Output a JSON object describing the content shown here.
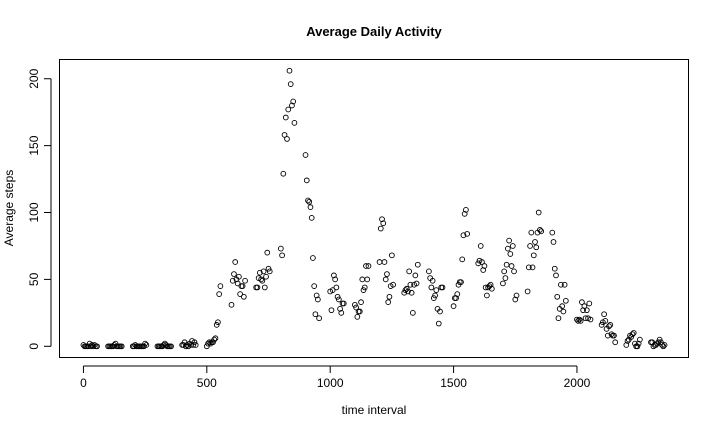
{
  "chart_data": {
    "type": "scatter",
    "title": "Average Daily Activity",
    "xlabel": "time interval",
    "ylabel": "Average steps",
    "xlim": [
      -95,
      2450
    ],
    "ylim": [
      -8,
      214
    ],
    "xticks": [
      0,
      500,
      1000,
      1500,
      2000
    ],
    "yticks": [
      0,
      50,
      100,
      150,
      200
    ],
    "marker": "open-circle",
    "grid": false,
    "points": [
      [
        0,
        1
      ],
      [
        5,
        0
      ],
      [
        10,
        0
      ],
      [
        15,
        0
      ],
      [
        20,
        0
      ],
      [
        25,
        2
      ],
      [
        30,
        0
      ],
      [
        35,
        1
      ],
      [
        40,
        0
      ],
      [
        45,
        1
      ],
      [
        50,
        0
      ],
      [
        55,
        0
      ],
      [
        100,
        0
      ],
      [
        105,
        0
      ],
      [
        110,
        0
      ],
      [
        115,
        0
      ],
      [
        120,
        0
      ],
      [
        125,
        1
      ],
      [
        130,
        2
      ],
      [
        135,
        0
      ],
      [
        140,
        0
      ],
      [
        145,
        0
      ],
      [
        150,
        0
      ],
      [
        155,
        0
      ],
      [
        200,
        0
      ],
      [
        205,
        0
      ],
      [
        210,
        1
      ],
      [
        215,
        0
      ],
      [
        220,
        0
      ],
      [
        225,
        0
      ],
      [
        230,
        0
      ],
      [
        235,
        0
      ],
      [
        240,
        0
      ],
      [
        245,
        0
      ],
      [
        250,
        2
      ],
      [
        255,
        1
      ],
      [
        300,
        0
      ],
      [
        305,
        0
      ],
      [
        310,
        0
      ],
      [
        315,
        0
      ],
      [
        320,
        0
      ],
      [
        325,
        1
      ],
      [
        330,
        2
      ],
      [
        335,
        1
      ],
      [
        340,
        0
      ],
      [
        345,
        0
      ],
      [
        350,
        0
      ],
      [
        355,
        0
      ],
      [
        400,
        1
      ],
      [
        405,
        1
      ],
      [
        410,
        3
      ],
      [
        415,
        0
      ],
      [
        420,
        1
      ],
      [
        425,
        0
      ],
      [
        430,
        2
      ],
      [
        435,
        1
      ],
      [
        440,
        4
      ],
      [
        445,
        1
      ],
      [
        450,
        3
      ],
      [
        455,
        1
      ],
      [
        500,
        0
      ],
      [
        505,
        2
      ],
      [
        510,
        3
      ],
      [
        515,
        2
      ],
      [
        520,
        3
      ],
      [
        525,
        3
      ],
      [
        530,
        5
      ],
      [
        535,
        6
      ],
      [
        540,
        16
      ],
      [
        545,
        18
      ],
      [
        550,
        39
      ],
      [
        555,
        45
      ],
      [
        600,
        31
      ],
      [
        605,
        49
      ],
      [
        610,
        54
      ],
      [
        615,
        63
      ],
      [
        620,
        50
      ],
      [
        625,
        47
      ],
      [
        630,
        52
      ],
      [
        635,
        39
      ],
      [
        640,
        45
      ],
      [
        645,
        45
      ],
      [
        650,
        37
      ],
      [
        655,
        49
      ],
      [
        700,
        44
      ],
      [
        705,
        44
      ],
      [
        710,
        51
      ],
      [
        715,
        55
      ],
      [
        720,
        50
      ],
      [
        725,
        49
      ],
      [
        730,
        56
      ],
      [
        735,
        44
      ],
      [
        740,
        52
      ],
      [
        745,
        70
      ],
      [
        750,
        58
      ],
      [
        755,
        56
      ],
      [
        800,
        73
      ],
      [
        805,
        68
      ],
      [
        810,
        129
      ],
      [
        815,
        158
      ],
      [
        820,
        171
      ],
      [
        825,
        155
      ],
      [
        830,
        177
      ],
      [
        835,
        206
      ],
      [
        840,
        196
      ],
      [
        845,
        180
      ],
      [
        850,
        183
      ],
      [
        855,
        167
      ],
      [
        900,
        143
      ],
      [
        905,
        124
      ],
      [
        910,
        109
      ],
      [
        915,
        108
      ],
      [
        920,
        104
      ],
      [
        925,
        96
      ],
      [
        930,
        66
      ],
      [
        935,
        45
      ],
      [
        940,
        24
      ],
      [
        945,
        38
      ],
      [
        950,
        35
      ],
      [
        955,
        21
      ],
      [
        1000,
        41
      ],
      [
        1005,
        27
      ],
      [
        1010,
        42
      ],
      [
        1015,
        53
      ],
      [
        1020,
        50
      ],
      [
        1025,
        44
      ],
      [
        1030,
        37
      ],
      [
        1035,
        35
      ],
      [
        1040,
        28
      ],
      [
        1045,
        25
      ],
      [
        1050,
        32
      ],
      [
        1055,
        32
      ],
      [
        1100,
        31
      ],
      [
        1105,
        29
      ],
      [
        1110,
        22
      ],
      [
        1115,
        26
      ],
      [
        1120,
        26
      ],
      [
        1125,
        33
      ],
      [
        1130,
        50
      ],
      [
        1135,
        42
      ],
      [
        1140,
        44
      ],
      [
        1145,
        60
      ],
      [
        1150,
        50
      ],
      [
        1155,
        60
      ],
      [
        1200,
        63
      ],
      [
        1205,
        88
      ],
      [
        1210,
        95
      ],
      [
        1215,
        92
      ],
      [
        1220,
        63
      ],
      [
        1225,
        50
      ],
      [
        1230,
        54
      ],
      [
        1235,
        33
      ],
      [
        1240,
        37
      ],
      [
        1245,
        45
      ],
      [
        1250,
        68
      ],
      [
        1255,
        46
      ],
      [
        1300,
        40
      ],
      [
        1305,
        42
      ],
      [
        1310,
        43
      ],
      [
        1315,
        41
      ],
      [
        1320,
        56
      ],
      [
        1325,
        46
      ],
      [
        1330,
        40
      ],
      [
        1335,
        25
      ],
      [
        1340,
        46
      ],
      [
        1345,
        53
      ],
      [
        1350,
        47
      ],
      [
        1355,
        61
      ],
      [
        1400,
        56
      ],
      [
        1405,
        51
      ],
      [
        1410,
        44
      ],
      [
        1415,
        49
      ],
      [
        1420,
        36
      ],
      [
        1425,
        38
      ],
      [
        1430,
        42
      ],
      [
        1435,
        28
      ],
      [
        1440,
        17
      ],
      [
        1445,
        26
      ],
      [
        1450,
        44
      ],
      [
        1455,
        44
      ],
      [
        1500,
        30
      ],
      [
        1505,
        36
      ],
      [
        1510,
        36
      ],
      [
        1515,
        39
      ],
      [
        1520,
        46
      ],
      [
        1525,
        48
      ],
      [
        1530,
        48
      ],
      [
        1535,
        65
      ],
      [
        1540,
        83
      ],
      [
        1545,
        99
      ],
      [
        1550,
        102
      ],
      [
        1555,
        84
      ],
      [
        1600,
        62
      ],
      [
        1605,
        64
      ],
      [
        1610,
        75
      ],
      [
        1615,
        63
      ],
      [
        1620,
        57
      ],
      [
        1625,
        60
      ],
      [
        1630,
        44
      ],
      [
        1635,
        38
      ],
      [
        1640,
        44
      ],
      [
        1645,
        45
      ],
      [
        1650,
        46
      ],
      [
        1655,
        43
      ],
      [
        1700,
        47
      ],
      [
        1705,
        56
      ],
      [
        1710,
        51
      ],
      [
        1715,
        61
      ],
      [
        1720,
        73
      ],
      [
        1725,
        79
      ],
      [
        1730,
        69
      ],
      [
        1735,
        60
      ],
      [
        1740,
        75
      ],
      [
        1745,
        56
      ],
      [
        1750,
        35
      ],
      [
        1755,
        38
      ],
      [
        1800,
        41
      ],
      [
        1805,
        59
      ],
      [
        1810,
        75
      ],
      [
        1815,
        85
      ],
      [
        1820,
        59
      ],
      [
        1825,
        68
      ],
      [
        1830,
        78
      ],
      [
        1835,
        74
      ],
      [
        1840,
        85
      ],
      [
        1845,
        100
      ],
      [
        1850,
        87
      ],
      [
        1855,
        86
      ],
      [
        1900,
        85
      ],
      [
        1905,
        78
      ],
      [
        1910,
        58
      ],
      [
        1915,
        53
      ],
      [
        1920,
        37
      ],
      [
        1925,
        21
      ],
      [
        1930,
        28
      ],
      [
        1935,
        46
      ],
      [
        1940,
        30
      ],
      [
        1945,
        26
      ],
      [
        1950,
        46
      ],
      [
        1955,
        34
      ],
      [
        2000,
        20
      ],
      [
        2005,
        19
      ],
      [
        2010,
        20
      ],
      [
        2015,
        19
      ],
      [
        2020,
        33
      ],
      [
        2025,
        27
      ],
      [
        2030,
        30
      ],
      [
        2035,
        21
      ],
      [
        2040,
        27
      ],
      [
        2045,
        21
      ],
      [
        2050,
        32
      ],
      [
        2055,
        20
      ],
      [
        2100,
        16
      ],
      [
        2105,
        18
      ],
      [
        2110,
        24
      ],
      [
        2115,
        19
      ],
      [
        2120,
        13
      ],
      [
        2125,
        8
      ],
      [
        2130,
        15
      ],
      [
        2135,
        16
      ],
      [
        2140,
        9
      ],
      [
        2145,
        8
      ],
      [
        2150,
        8
      ],
      [
        2155,
        3
      ],
      [
        2200,
        1
      ],
      [
        2205,
        4
      ],
      [
        2210,
        5
      ],
      [
        2215,
        8
      ],
      [
        2220,
        7
      ],
      [
        2225,
        9
      ],
      [
        2230,
        10
      ],
      [
        2235,
        2
      ],
      [
        2240,
        0
      ],
      [
        2245,
        0
      ],
      [
        2250,
        2
      ],
      [
        2255,
        5
      ],
      [
        2300,
        3
      ],
      [
        2305,
        3
      ],
      [
        2310,
        0
      ],
      [
        2315,
        1
      ],
      [
        2320,
        1
      ],
      [
        2325,
        2
      ],
      [
        2330,
        3
      ],
      [
        2335,
        5
      ],
      [
        2340,
        3
      ],
      [
        2345,
        1
      ],
      [
        2350,
        0
      ],
      [
        2355,
        1
      ]
    ]
  }
}
